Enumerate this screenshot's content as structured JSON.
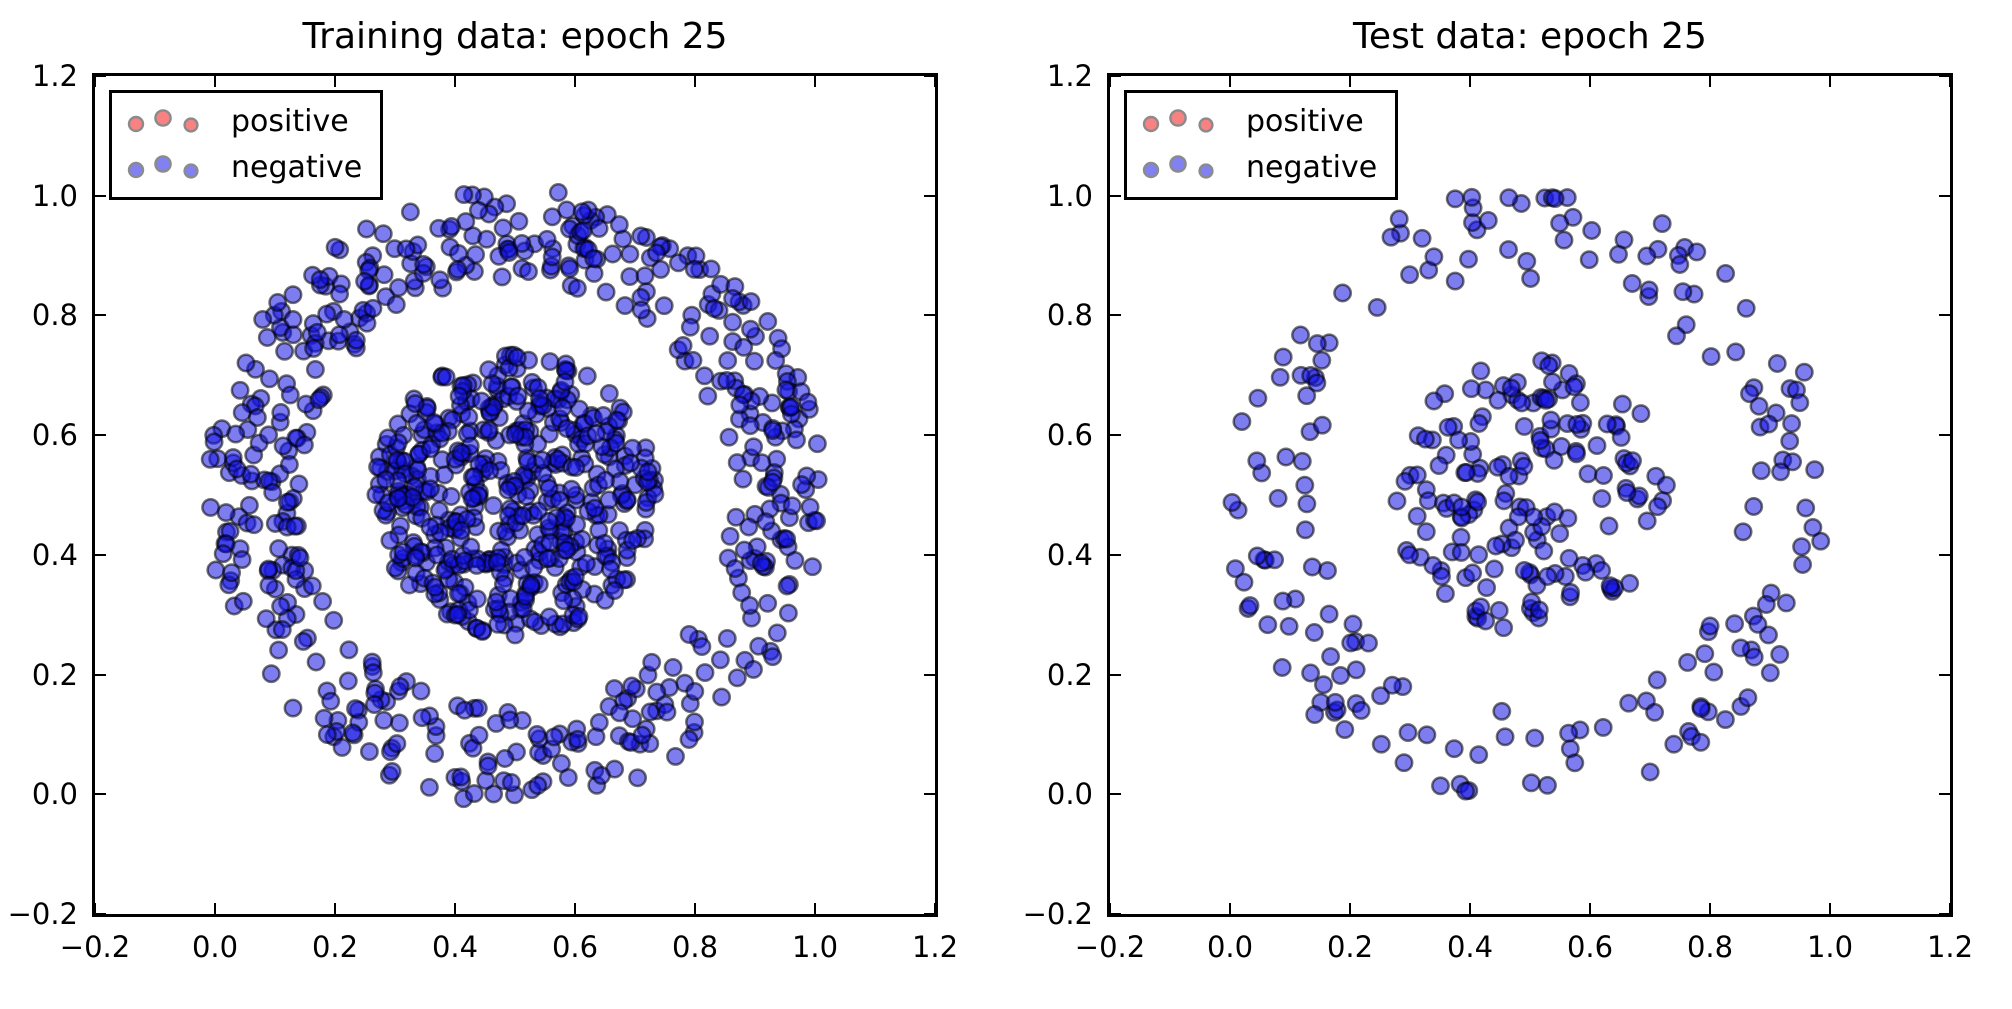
{
  "figure": {
    "background": "#ffffff",
    "spine_color": "#000000",
    "tick_color": "#000000",
    "text_color": "#000000"
  },
  "chart_data": [
    {
      "type": "scatter",
      "title": "Training data: epoch 25",
      "xlabel": "",
      "ylabel": "",
      "xlim": [
        -0.2,
        1.2
      ],
      "ylim": [
        -0.2,
        1.2
      ],
      "grid": false,
      "tick_direction": "in",
      "xticks": [
        {
          "value": -0.2,
          "label": "−0.2"
        },
        {
          "value": 0.0,
          "label": "0.0"
        },
        {
          "value": 0.2,
          "label": "0.2"
        },
        {
          "value": 0.4,
          "label": "0.4"
        },
        {
          "value": 0.6,
          "label": "0.6"
        },
        {
          "value": 0.8,
          "label": "0.8"
        },
        {
          "value": 1.0,
          "label": "1.0"
        },
        {
          "value": 1.2,
          "label": "1.2"
        }
      ],
      "yticks": [
        {
          "value": -0.2,
          "label": "−0.2"
        },
        {
          "value": 0.0,
          "label": "0.0"
        },
        {
          "value": 0.2,
          "label": "0.2"
        },
        {
          "value": 0.4,
          "label": "0.4"
        },
        {
          "value": 0.6,
          "label": "0.6"
        },
        {
          "value": 0.8,
          "label": "0.8"
        },
        {
          "value": 1.0,
          "label": "1.0"
        },
        {
          "value": 1.2,
          "label": "1.2"
        }
      ],
      "legend": {
        "position": "upper-left",
        "entries": [
          {
            "label": "positive",
            "marker_fill": "#f88181",
            "marker_edge": "#8b8b8b"
          },
          {
            "label": "negative",
            "marker_fill": "#8181f2",
            "marker_edge": "#8b8b8b"
          }
        ]
      },
      "marker": {
        "fill": "rgba(18,18,226,0.55)",
        "edge": "rgba(0,0,0,0.55)",
        "radius": 8.2,
        "edge_width": 2.5
      },
      "series": [
        {
          "name": "positive",
          "count": 0,
          "note": "no positive points visible"
        },
        {
          "name": "negative inner disc",
          "shape": "disc",
          "center": [
            0.5,
            0.5
          ],
          "radius_range": [
            0.0,
            0.235
          ],
          "count": 500,
          "seed": 20251
        },
        {
          "name": "negative outer ring",
          "shape": "ring",
          "center": [
            0.5,
            0.5
          ],
          "radius_range": [
            0.36,
            0.515
          ],
          "count": 520,
          "seed": 7771
        }
      ]
    },
    {
      "type": "scatter",
      "title": "Test data: epoch 25",
      "xlabel": "",
      "ylabel": "",
      "xlim": [
        -0.2,
        1.2
      ],
      "ylim": [
        -0.2,
        1.2
      ],
      "grid": false,
      "tick_direction": "in",
      "xticks": [
        {
          "value": -0.2,
          "label": "−0.2"
        },
        {
          "value": 0.0,
          "label": "0.0"
        },
        {
          "value": 0.2,
          "label": "0.2"
        },
        {
          "value": 0.4,
          "label": "0.4"
        },
        {
          "value": 0.6,
          "label": "0.6"
        },
        {
          "value": 0.8,
          "label": "0.8"
        },
        {
          "value": 1.0,
          "label": "1.0"
        },
        {
          "value": 1.2,
          "label": "1.2"
        }
      ],
      "yticks": [
        {
          "value": -0.2,
          "label": "−0.2"
        },
        {
          "value": 0.0,
          "label": "0.0"
        },
        {
          "value": 0.2,
          "label": "0.2"
        },
        {
          "value": 0.4,
          "label": "0.4"
        },
        {
          "value": 0.6,
          "label": "0.6"
        },
        {
          "value": 0.8,
          "label": "0.8"
        },
        {
          "value": 1.0,
          "label": "1.0"
        },
        {
          "value": 1.2,
          "label": "1.2"
        }
      ],
      "legend": {
        "position": "upper-left",
        "entries": [
          {
            "label": "positive",
            "marker_fill": "#f88181",
            "marker_edge": "#8b8b8b"
          },
          {
            "label": "negative",
            "marker_fill": "#8181f2",
            "marker_edge": "#8b8b8b"
          }
        ]
      },
      "marker": {
        "fill": "rgba(18,18,226,0.55)",
        "edge": "rgba(0,0,0,0.55)",
        "radius": 8.2,
        "edge_width": 2.5
      },
      "series": [
        {
          "name": "positive",
          "count": 0,
          "note": "no positive points visible"
        },
        {
          "name": "negative inner disc",
          "shape": "disc",
          "center": [
            0.5,
            0.5
          ],
          "radius_range": [
            0.0,
            0.23
          ],
          "count": 170,
          "seed": 4242
        },
        {
          "name": "negative outer ring",
          "shape": "ring",
          "center": [
            0.5,
            0.5
          ],
          "radius_range": [
            0.36,
            0.515
          ],
          "count": 190,
          "seed": 991
        }
      ]
    }
  ]
}
